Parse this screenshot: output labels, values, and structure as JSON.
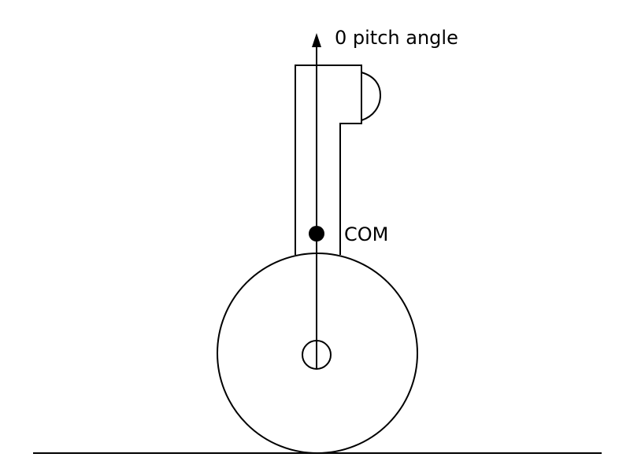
{
  "diagram": {
    "axis_label": "0 pitch angle",
    "com_label": "COM"
  },
  "colors": {
    "stroke": "#000000",
    "background": "#ffffff"
  }
}
